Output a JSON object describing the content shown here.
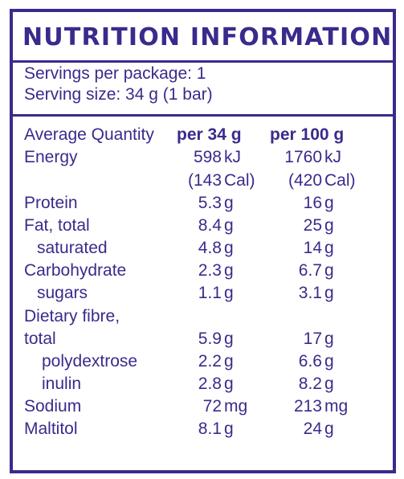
{
  "title": "NUTRITION INFORMATION",
  "servings_per_package": "Servings per package: 1",
  "serving_size": "Serving size: 34 g (1 bar)",
  "columns": {
    "label": "Average Quantity",
    "per_serving": "per 34 g",
    "per_100g": "per 100 g"
  },
  "rows": [
    {
      "label": "Energy",
      "v1": "598",
      "u1": "kJ",
      "v2": "1760",
      "u2": "kJ"
    },
    {
      "label": "",
      "v1": "(143",
      "u1": "Cal)",
      "v2": "(420",
      "u2": "Cal)"
    },
    {
      "label": "Protein",
      "v1": "5.3",
      "u1": "g",
      "v2": "16",
      "u2": "g"
    },
    {
      "label": "Fat, total",
      "v1": "8.4",
      "u1": "g",
      "v2": "25",
      "u2": "g"
    },
    {
      "label": "saturated",
      "v1": "4.8",
      "u1": "g",
      "v2": "14",
      "u2": "g"
    },
    {
      "label": "Carbohydrate",
      "v1": "2.3",
      "u1": "g",
      "v2": "6.7",
      "u2": "g"
    },
    {
      "label": "sugars",
      "v1": "1.1",
      "u1": "g",
      "v2": "3.1",
      "u2": "g"
    },
    {
      "label": "Dietary fibre,",
      "v1": "",
      "u1": "",
      "v2": "",
      "u2": ""
    },
    {
      "label": "total",
      "v1": "5.9",
      "u1": "g",
      "v2": "17",
      "u2": "g"
    },
    {
      "label": "polydextrose",
      "v1": "2.2",
      "u1": "g",
      "v2": "6.6",
      "u2": "g"
    },
    {
      "label": "inulin",
      "v1": "2.8",
      "u1": "g",
      "v2": "8.2",
      "u2": "g"
    },
    {
      "label": "Sodium",
      "v1": "72",
      "u1": "mg",
      "v2": "213",
      "u2": "mg"
    },
    {
      "label": "Maltitol",
      "v1": "8.1",
      "u1": "g",
      "v2": "24",
      "u2": "g"
    }
  ]
}
